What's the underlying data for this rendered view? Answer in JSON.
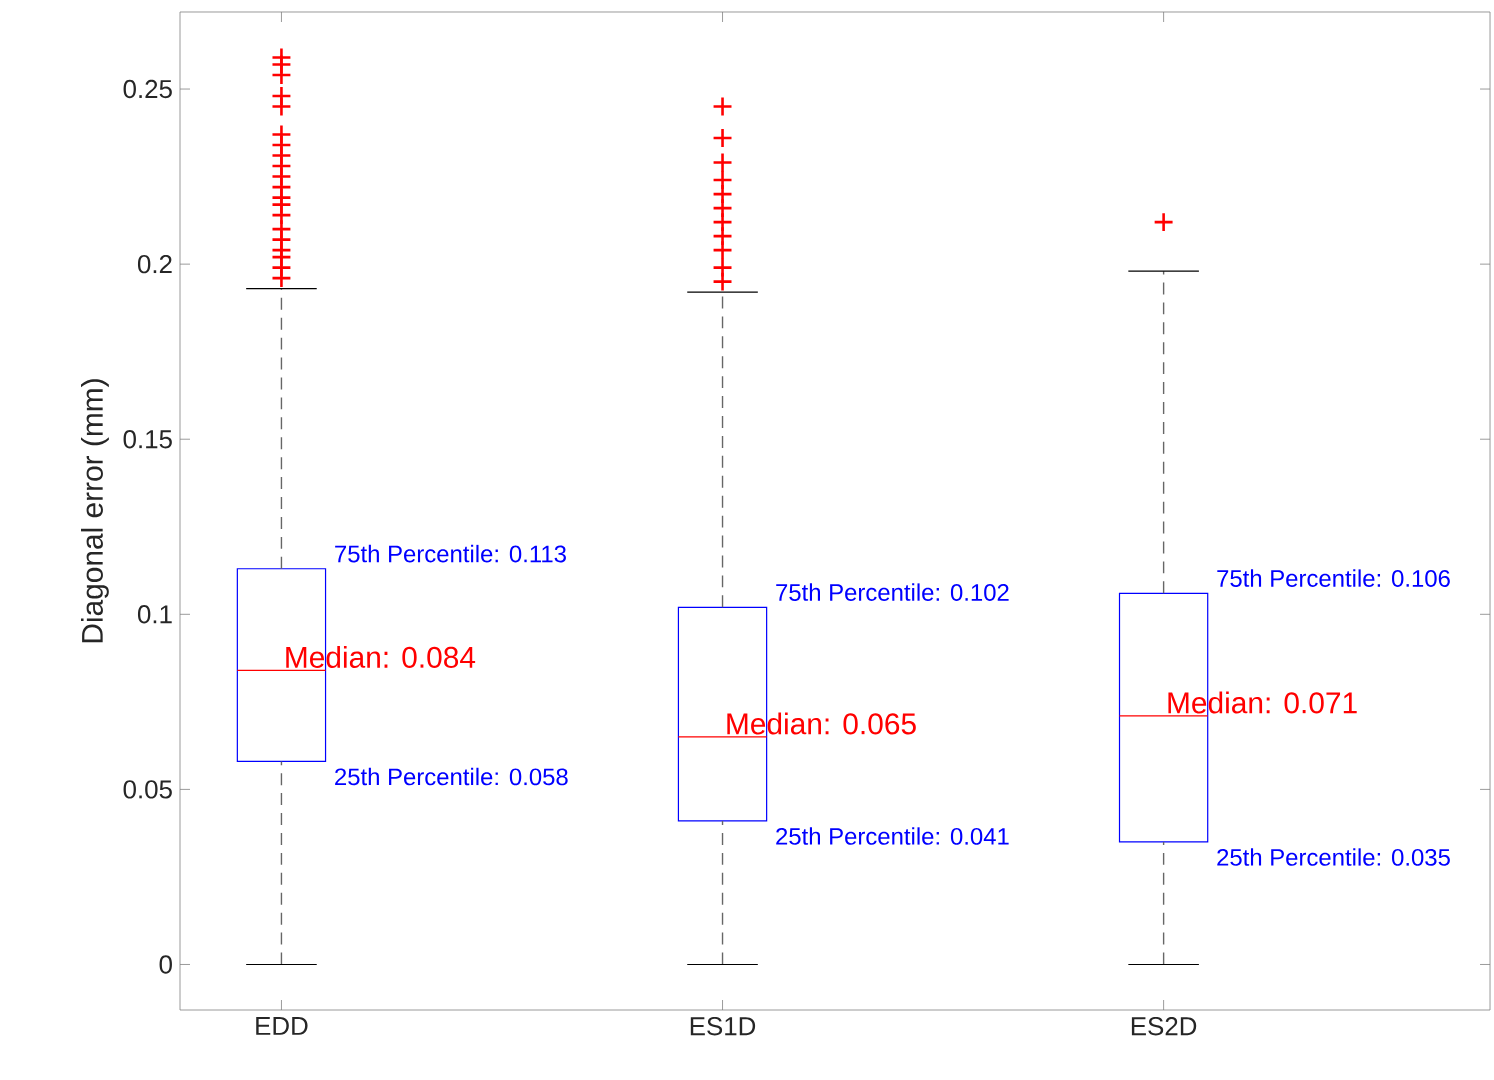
{
  "chart_data": {
    "type": "box",
    "ylabel": "Diagonal error (mm)",
    "categories": [
      "EDD",
      "ES1D",
      "ES2D"
    ],
    "color": "#0000ff",
    "marker": "cross",
    "ylim": [
      -0.013,
      0.272
    ],
    "yticks": [
      0,
      0.05,
      0.1,
      0.15,
      0.2,
      0.25
    ],
    "boxes": [
      {
        "low": 0,
        "q1": 0.058,
        "median": 0.084,
        "q3": 0.113,
        "high": 0.193,
        "outliers": [
          0.259,
          0.257,
          0.254,
          0.248,
          0.245,
          0.237,
          0.234,
          0.231,
          0.228,
          0.225,
          0.222,
          0.219,
          0.217,
          0.214,
          0.21,
          0.207,
          0.204,
          0.202,
          0.199,
          0.196
        ]
      },
      {
        "low": 0,
        "q1": 0.041,
        "median": 0.065,
        "q3": 0.102,
        "high": 0.192,
        "outliers": [
          0.245,
          0.236,
          0.229,
          0.224,
          0.22,
          0.216,
          0.212,
          0.208,
          0.204,
          0.199,
          0.195
        ]
      },
      {
        "low": 0,
        "q1": 0.035,
        "median": 0.071,
        "q3": 0.106,
        "high": 0.198,
        "outliers": [
          0.212
        ]
      }
    ],
    "annotations": [
      {
        "text": "75th Percentile: 0.113",
        "x": "EDD",
        "y": 0.113
      },
      {
        "text": "Median: 0.084",
        "x": "EDD",
        "y": 0.084
      },
      {
        "text": "25th Percentile: 0.058",
        "x": "EDD",
        "y": 0.058
      },
      {
        "text": "75th Percentile: 0.102",
        "x": "ES1D",
        "y": 0.102
      },
      {
        "text": "Median: 0.065",
        "x": "ES1D",
        "y": 0.065
      },
      {
        "text": "25th Percentile: 0.041",
        "x": "ES1D",
        "y": 0.041
      },
      {
        "text": "75th Percentile: 0.106",
        "x": "ES2D",
        "y": 0.106
      },
      {
        "text": "Median: 0.071",
        "x": "ES2D",
        "y": 0.071
      },
      {
        "text": "25th Percentile: 0.035",
        "x": "ES2D",
        "y": 0.035
      }
    ]
  }
}
